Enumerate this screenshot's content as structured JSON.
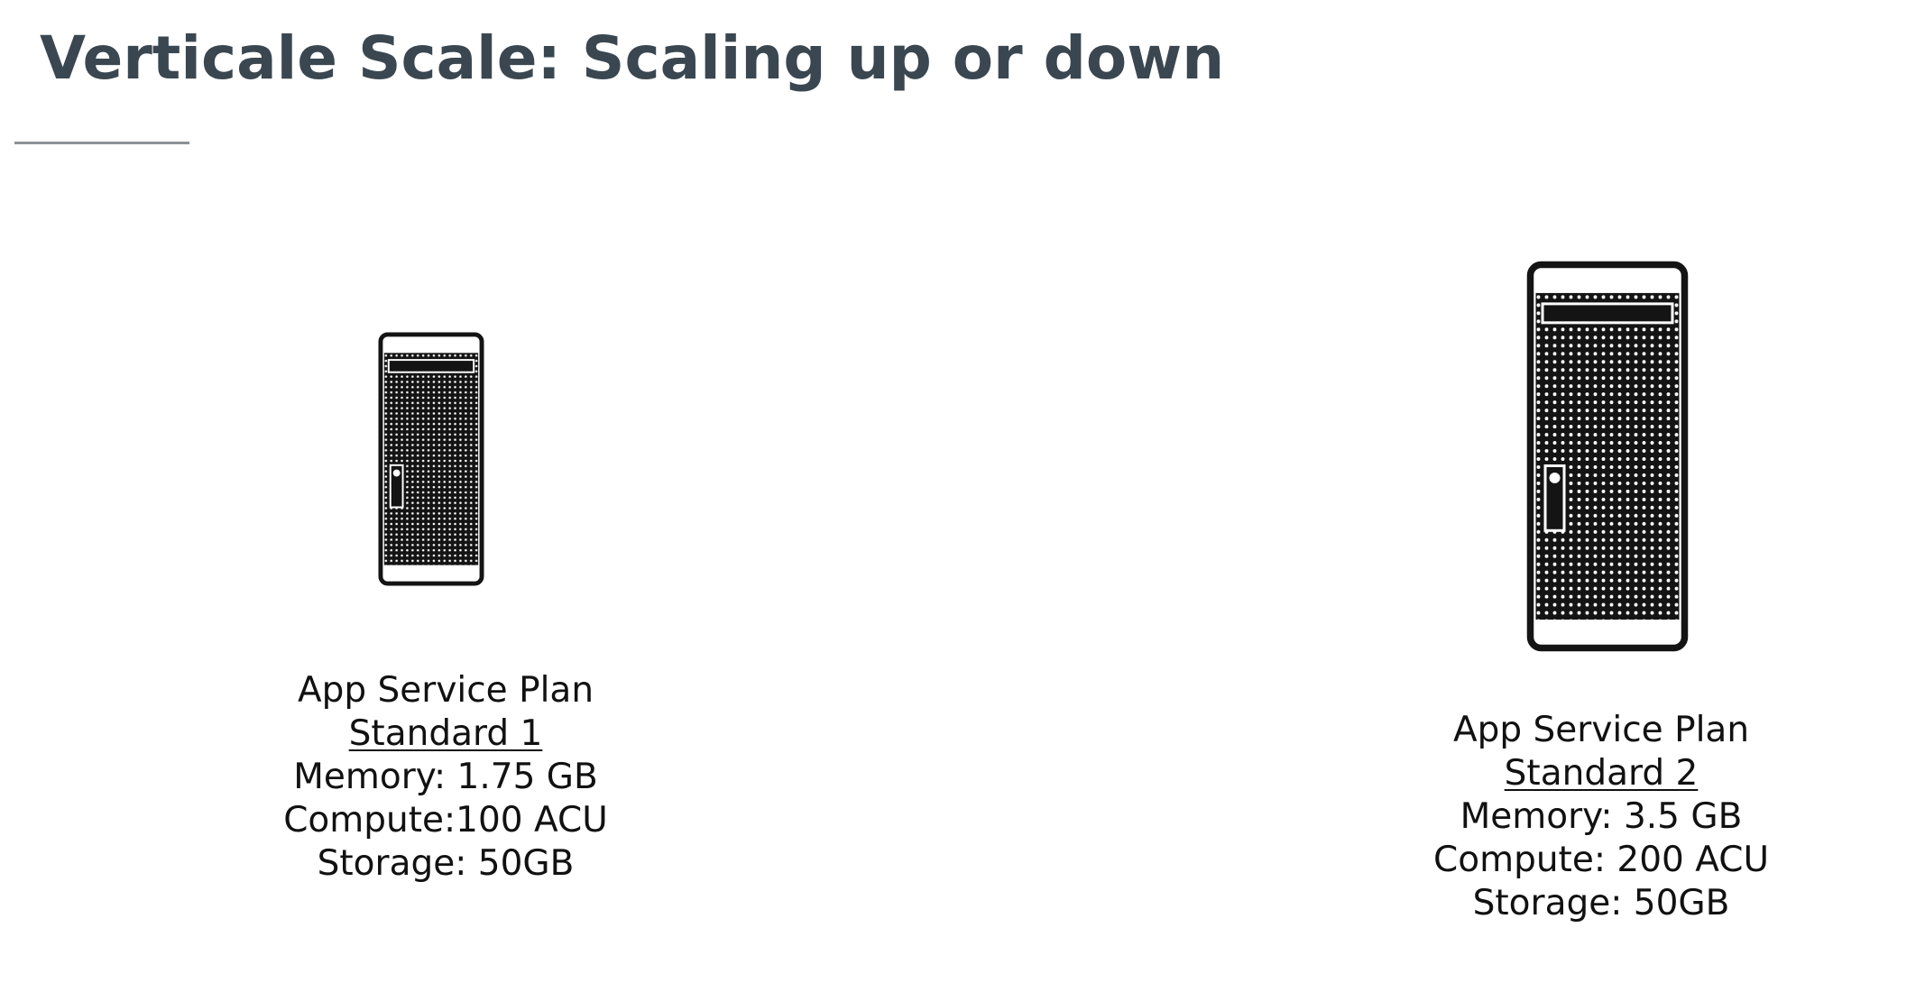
{
  "slide": {
    "title": "Verticale Scale: Scaling up or down"
  },
  "plans": [
    {
      "heading": "App Service Plan",
      "tier": "Standard 1",
      "memory": "Memory: 1.75 GB",
      "compute": "Compute:100 ACU",
      "storage": "Storage: 50GB",
      "icon": "server-tower-icon"
    },
    {
      "heading": "App Service Plan",
      "tier": "Standard 2",
      "memory": "Memory: 3.5 GB",
      "compute": "Compute: 200 ACU",
      "storage": "Storage: 50GB",
      "icon": "server-tower-icon"
    }
  ]
}
